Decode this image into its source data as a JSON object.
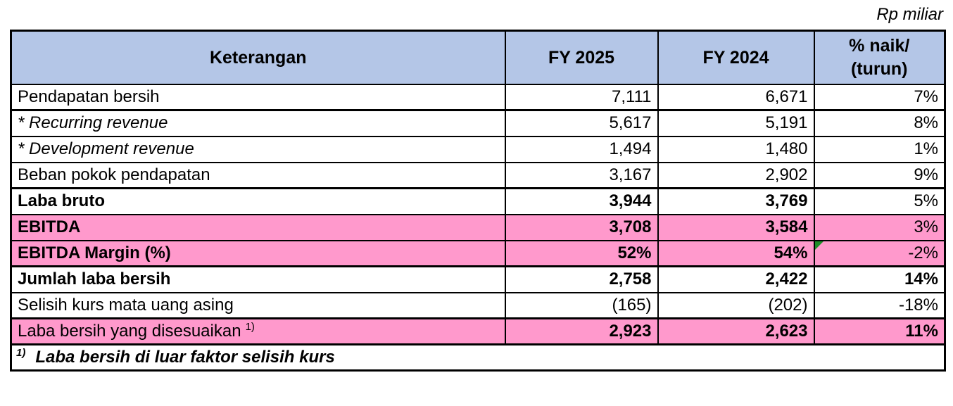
{
  "units_note": "Rp miliar",
  "colors": {
    "header_fill": "#b4c6e7",
    "highlight_fill": "#ff99cc",
    "indicator_green": "#1e8c28",
    "border": "#000000"
  },
  "table": {
    "headers": {
      "keterangan": "Keterangan",
      "fy2025": "FY 2025",
      "fy2024": "FY 2024",
      "pct_line1": "% naik/",
      "pct_line2": "(turun)"
    },
    "rows": [
      {
        "label": "Pendapatan bersih",
        "fy2025": "7,111",
        "fy2024": "6,671",
        "pct": "7%"
      },
      {
        "label": "* Recurring revenue",
        "fy2025": "5,617",
        "fy2024": "5,191",
        "pct": "8%"
      },
      {
        "label": "* Development revenue",
        "fy2025": "1,494",
        "fy2024": "1,480",
        "pct": "1%"
      },
      {
        "label": "Beban pokok pendapatan",
        "fy2025": "3,167",
        "fy2024": "2,902",
        "pct": "9%"
      },
      {
        "label": "Laba bruto",
        "fy2025": "3,944",
        "fy2024": "3,769",
        "pct": "5%"
      },
      {
        "label": "EBITDA",
        "fy2025": "3,708",
        "fy2024": "3,584",
        "pct": "3%"
      },
      {
        "label": "EBITDA Margin (%)",
        "fy2025": "52%",
        "fy2024": "54%",
        "pct": "-2%"
      },
      {
        "label": "Jumlah laba bersih",
        "fy2025": "2,758",
        "fy2024": "2,422",
        "pct": "14%"
      },
      {
        "label": "Selisih kurs mata uang asing",
        "fy2025": "(165)",
        "fy2024": "(202)",
        "pct": "-18%"
      },
      {
        "label": "Laba bersih yang disesuaikan",
        "footnote_ref": "1)",
        "fy2025": "2,923",
        "fy2024": "2,623",
        "pct": "11%"
      }
    ],
    "footnote": {
      "ref": "1)",
      "text": "Laba bersih di luar faktor selisih kurs"
    }
  }
}
